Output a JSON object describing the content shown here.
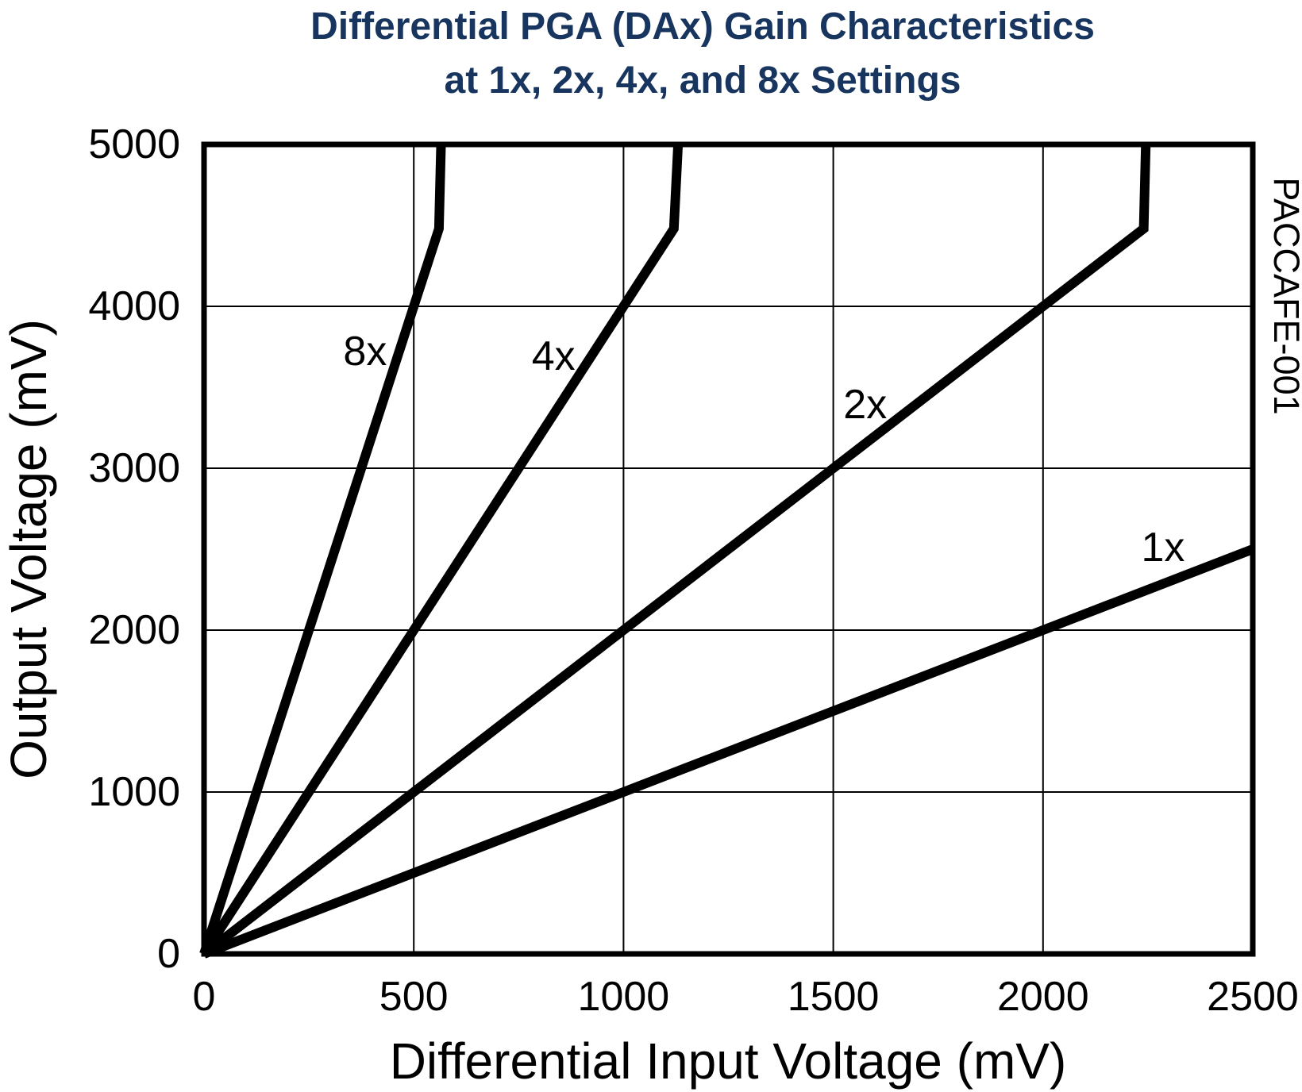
{
  "title": {
    "line1": "Differential PGA (DAx) Gain Characteristics",
    "line2": "at 1x, 2x, 4x, and 8x Settings",
    "color": "#17355E"
  },
  "watermark": "PACCAFE-001",
  "chart_data": {
    "type": "line",
    "title": "Differential PGA (DAx) Gain Characteristics at 1x, 2x, 4x, and 8x Settings",
    "xlabel": "Differential Input Voltage (mV)",
    "ylabel": "Output Voltage (mV)",
    "xlim": [
      0,
      2500
    ],
    "ylim": [
      0,
      5000
    ],
    "xticks": [
      0,
      500,
      1000,
      1500,
      2000,
      2500
    ],
    "yticks": [
      0,
      1000,
      2000,
      3000,
      4000,
      5000
    ],
    "grid": true,
    "legend_position": "inline-labels",
    "line_color": "#000000",
    "grid_color": "#000000",
    "series": [
      {
        "name": "8x",
        "gain": 8,
        "points": [
          [
            0,
            0
          ],
          [
            560,
            4480
          ],
          [
            565,
            5000
          ]
        ],
        "label_pos": [
          384,
          3720
        ]
      },
      {
        "name": "4x",
        "gain": 4,
        "points": [
          [
            0,
            0
          ],
          [
            1120,
            4480
          ],
          [
            1130,
            5000
          ]
        ],
        "label_pos": [
          833,
          3690
        ]
      },
      {
        "name": "2x",
        "gain": 2,
        "points": [
          [
            0,
            0
          ],
          [
            2240,
            4480
          ],
          [
            2245,
            5000
          ]
        ],
        "label_pos": [
          1576,
          3390
        ]
      },
      {
        "name": "1x",
        "gain": 1,
        "points": [
          [
            0,
            0
          ],
          [
            2500,
            2500
          ]
        ],
        "label_pos": [
          2286,
          2510
        ]
      }
    ]
  }
}
